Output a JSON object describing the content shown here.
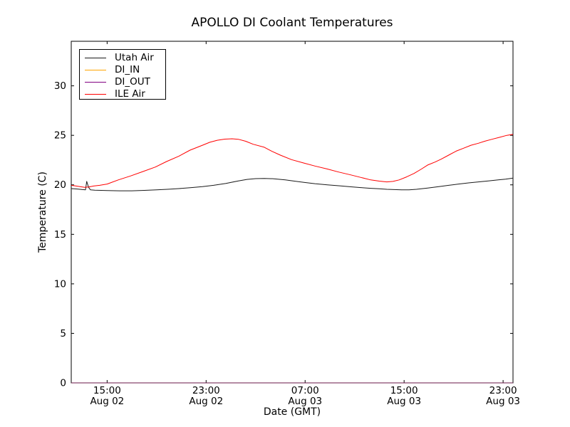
{
  "chart_data": {
    "type": "line",
    "title": "APOLLO DI Coolant Temperatures",
    "xlabel": "Date (GMT)",
    "ylabel": "Temperature (C)",
    "grid": false,
    "legend_position": "upper left",
    "x_unit_note": "hours since Aug 02 12:00 GMT",
    "xlim": [
      0.1,
      35.8
    ],
    "ylim": [
      0,
      34.5
    ],
    "y_ticks": [
      0,
      5,
      10,
      15,
      20,
      25,
      30
    ],
    "x_ticks": [
      {
        "h": 3,
        "time": "15:00",
        "date": "Aug 02"
      },
      {
        "h": 11,
        "time": "23:00",
        "date": "Aug 02"
      },
      {
        "h": 19,
        "time": "07:00",
        "date": "Aug 03"
      },
      {
        "h": 27,
        "time": "15:00",
        "date": "Aug 03"
      },
      {
        "h": 35,
        "time": "23:00",
        "date": "Aug 03"
      }
    ],
    "series": [
      {
        "name": "Utah Air",
        "color": "#1a1a1a",
        "points": [
          [
            0.1,
            19.62
          ],
          [
            0.6,
            19.58
          ],
          [
            1.0,
            19.52
          ],
          [
            1.25,
            19.5
          ],
          [
            1.35,
            20.35
          ],
          [
            1.5,
            19.75
          ],
          [
            1.65,
            19.5
          ],
          [
            2.0,
            19.46
          ],
          [
            3.0,
            19.43
          ],
          [
            4.0,
            19.4
          ],
          [
            5.0,
            19.4
          ],
          [
            6.0,
            19.44
          ],
          [
            7.0,
            19.5
          ],
          [
            8.0,
            19.56
          ],
          [
            8.8,
            19.62
          ],
          [
            9.8,
            19.72
          ],
          [
            10.7,
            19.82
          ],
          [
            11.6,
            19.95
          ],
          [
            12.6,
            20.15
          ],
          [
            13.6,
            20.4
          ],
          [
            14.3,
            20.55
          ],
          [
            15.0,
            20.63
          ],
          [
            15.7,
            20.65
          ],
          [
            16.4,
            20.62
          ],
          [
            17.4,
            20.5
          ],
          [
            18.9,
            20.25
          ],
          [
            19.8,
            20.12
          ],
          [
            20.8,
            20.0
          ],
          [
            21.8,
            19.9
          ],
          [
            22.7,
            19.8
          ],
          [
            23.5,
            19.72
          ],
          [
            24.3,
            19.65
          ],
          [
            25.0,
            19.6
          ],
          [
            25.6,
            19.55
          ],
          [
            26.2,
            19.52
          ],
          [
            26.8,
            19.5
          ],
          [
            27.4,
            19.5
          ],
          [
            28.0,
            19.55
          ],
          [
            28.9,
            19.68
          ],
          [
            29.8,
            19.82
          ],
          [
            30.6,
            19.95
          ],
          [
            31.4,
            20.08
          ],
          [
            32.2,
            20.2
          ],
          [
            33.0,
            20.3
          ],
          [
            33.8,
            20.4
          ],
          [
            34.6,
            20.5
          ],
          [
            35.2,
            20.58
          ],
          [
            35.8,
            20.68
          ]
        ]
      },
      {
        "name": "DI_IN",
        "color": "#ffa500",
        "points": [
          [
            0.1,
            0
          ],
          [
            35.8,
            0
          ]
        ]
      },
      {
        "name": "DI_OUT",
        "color": "#800080",
        "points": [
          [
            0.1,
            0
          ],
          [
            35.8,
            0
          ]
        ]
      },
      {
        "name": "ILE Air",
        "color": "#ff0000",
        "points": [
          [
            0.1,
            19.95
          ],
          [
            0.5,
            19.88
          ],
          [
            0.9,
            19.8
          ],
          [
            1.2,
            19.75
          ],
          [
            1.5,
            19.78
          ],
          [
            1.9,
            19.88
          ],
          [
            2.4,
            19.95
          ],
          [
            3.0,
            20.08
          ],
          [
            3.9,
            20.5
          ],
          [
            4.9,
            20.9
          ],
          [
            5.9,
            21.35
          ],
          [
            6.9,
            21.8
          ],
          [
            7.8,
            22.35
          ],
          [
            8.8,
            22.9
          ],
          [
            9.7,
            23.5
          ],
          [
            10.7,
            24.0
          ],
          [
            11.3,
            24.3
          ],
          [
            11.9,
            24.5
          ],
          [
            12.5,
            24.62
          ],
          [
            13.1,
            24.65
          ],
          [
            13.6,
            24.6
          ],
          [
            14.2,
            24.4
          ],
          [
            14.8,
            24.1
          ],
          [
            15.7,
            23.8
          ],
          [
            16.3,
            23.4
          ],
          [
            17.0,
            23.0
          ],
          [
            17.9,
            22.55
          ],
          [
            18.9,
            22.2
          ],
          [
            19.8,
            21.9
          ],
          [
            20.8,
            21.6
          ],
          [
            21.7,
            21.3
          ],
          [
            22.7,
            21.0
          ],
          [
            23.5,
            20.75
          ],
          [
            24.3,
            20.5
          ],
          [
            25.0,
            20.38
          ],
          [
            25.6,
            20.3
          ],
          [
            26.1,
            20.35
          ],
          [
            26.6,
            20.5
          ],
          [
            27.2,
            20.8
          ],
          [
            27.8,
            21.15
          ],
          [
            28.4,
            21.6
          ],
          [
            28.9,
            22.0
          ],
          [
            29.5,
            22.3
          ],
          [
            30.0,
            22.6
          ],
          [
            30.6,
            23.0
          ],
          [
            31.2,
            23.4
          ],
          [
            31.8,
            23.7
          ],
          [
            32.4,
            24.0
          ],
          [
            33.0,
            24.2
          ],
          [
            33.5,
            24.4
          ],
          [
            34.1,
            24.6
          ],
          [
            34.7,
            24.8
          ],
          [
            35.3,
            25.0
          ],
          [
            35.8,
            25.1
          ]
        ]
      }
    ]
  }
}
